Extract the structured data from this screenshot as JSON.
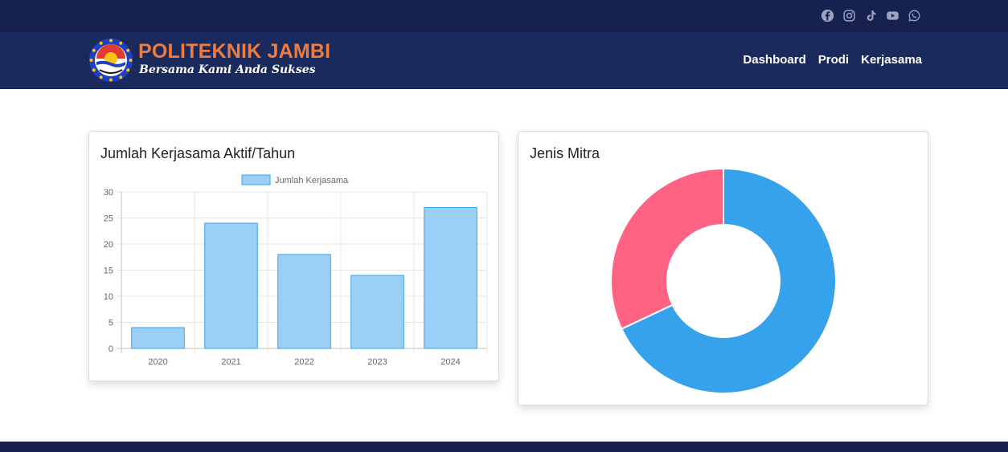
{
  "header": {
    "brand_title": "POLITEKNIK JAMBI",
    "brand_tagline": "Bersama Kami Anda Sukses",
    "nav": [
      {
        "label": "Dashboard"
      },
      {
        "label": "Prodi"
      },
      {
        "label": "Kerjasama"
      }
    ],
    "social_icons": [
      "facebook-icon",
      "instagram-icon",
      "tiktok-icon",
      "youtube-icon",
      "whatsapp-icon"
    ]
  },
  "colors": {
    "topbar": "#16214f",
    "navbar": "#1b2a5c",
    "brand": "#f07b3c",
    "bar_fill": "#9ad0f5",
    "bar_stroke": "#36a2eb",
    "donut_blue": "#36a2eb",
    "donut_pink": "#ff6384"
  },
  "cards": {
    "bar_title": "Jumlah Kerjasama Aktif/Tahun",
    "pie_title": "Jenis Mitra"
  },
  "chart_data": [
    {
      "type": "bar",
      "title": "Jumlah Kerjasama Aktif/Tahun",
      "categories": [
        "2020",
        "2021",
        "2022",
        "2023",
        "2024"
      ],
      "series": [
        {
          "name": "Jumlah Kerjasama",
          "values": [
            4,
            24,
            18,
            14,
            27
          ]
        }
      ],
      "ylim": [
        0,
        30
      ],
      "yticks": [
        0,
        5,
        10,
        15,
        20,
        25,
        30
      ],
      "grid": true,
      "legend": "top"
    },
    {
      "type": "pie",
      "title": "Jenis Mitra",
      "slices": [
        {
          "value": 68,
          "color": "#36a2eb"
        },
        {
          "value": 32,
          "color": "#ff6384"
        }
      ]
    }
  ]
}
